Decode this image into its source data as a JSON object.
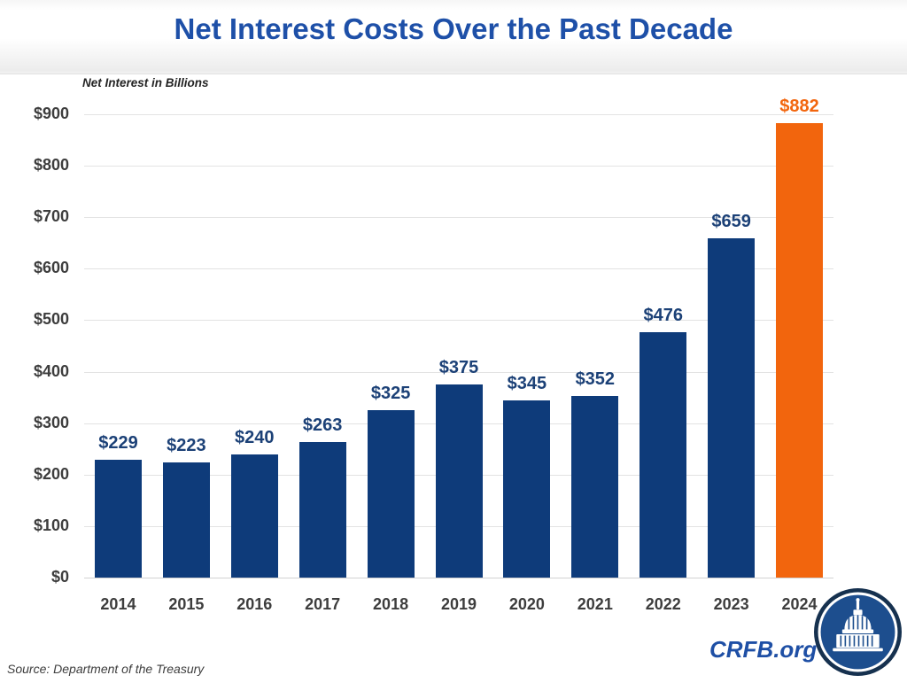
{
  "chart_data": {
    "type": "bar",
    "title": "Net Interest Costs Over the Past Decade",
    "y_axis_title": "Net Interest in Billions",
    "categories": [
      "2014",
      "2015",
      "2016",
      "2017",
      "2018",
      "2019",
      "2020",
      "2021",
      "2022",
      "2023",
      "2024"
    ],
    "values": [
      229,
      223,
      240,
      263,
      325,
      375,
      345,
      352,
      476,
      659,
      882
    ],
    "bar_labels": [
      "$229",
      "$223",
      "$240",
      "$263",
      "$325",
      "$375",
      "$345",
      "$352",
      "$476",
      "$659",
      "$882"
    ],
    "ylim": [
      0,
      900
    ],
    "y_ticks": [
      {
        "label": "$900",
        "value": 900
      },
      {
        "label": "$800",
        "value": 800
      },
      {
        "label": "$700",
        "value": 700
      },
      {
        "label": "$600",
        "value": 600
      },
      {
        "label": "$500",
        "value": 500
      },
      {
        "label": "$400",
        "value": 400
      },
      {
        "label": "$300",
        "value": 300
      },
      {
        "label": "$200",
        "value": 200
      },
      {
        "label": "$100",
        "value": 100
      },
      {
        "label": "$0",
        "value": 0
      }
    ],
    "grid": "horizontal",
    "legend": "none",
    "highlight_index": 10
  },
  "colors": {
    "title_blue": "#1e50a8",
    "bar_navy": "#0e3b7a",
    "highlight_orange": "#f2650d",
    "value_label_navy": "#1c4177",
    "axis_text": "#3d3d3d",
    "grid_line": "#e3e3e3",
    "brand_blue": "#1e4fa5",
    "logo_ring_navy": "#16314f",
    "logo_fill_blue": "#1d4e8e"
  },
  "footer": {
    "source": "Source: Department of the Treasury",
    "brand": "CRFB.org"
  }
}
